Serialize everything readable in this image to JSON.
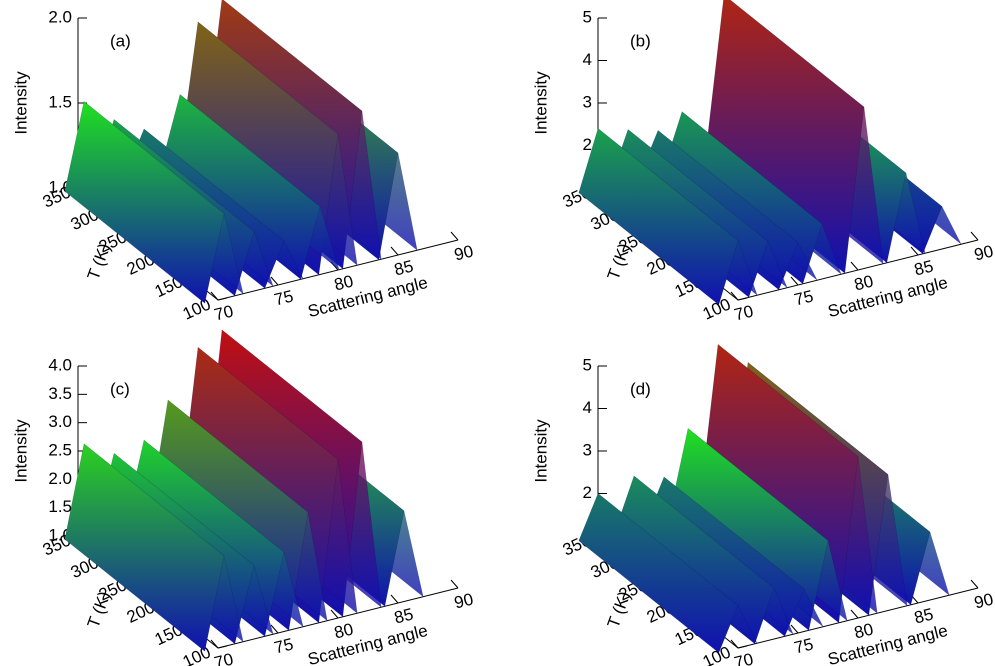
{
  "chart_data": [
    {
      "type": "surface3d",
      "label": "(a)",
      "zlabel": "Intensity",
      "tlabel": "T (K)",
      "xlabel": "Scattering angle",
      "xlim": [
        70,
        90
      ],
      "xticks": [
        70,
        75,
        80,
        85,
        90
      ],
      "tlim": [
        100,
        350
      ],
      "tticks": [
        100,
        150,
        200,
        250,
        300,
        350
      ],
      "zlim": [
        1,
        2
      ],
      "zticks": [
        {
          "value": 1,
          "label": "1.0"
        },
        1.5,
        {
          "value": 2,
          "label": "2.0"
        }
      ],
      "colormap": [
        "#1010b0",
        "#20e020",
        "#c01010"
      ],
      "x": [
        70.5,
        73,
        75.5,
        78.5,
        80,
        82,
        85
      ],
      "values": [
        1.5,
        1.35,
        1.25,
        1.4,
        1.8,
        1.9,
        1.6
      ]
    },
    {
      "type": "surface3d",
      "label": "(b)",
      "zlabel": "Intensity",
      "tlabel": "T (K)",
      "xlabel": "Scattering angle",
      "xlim": [
        70,
        90
      ],
      "xticks": [
        70,
        75,
        80,
        85,
        90
      ],
      "tlim": [
        100,
        350
      ],
      "tticks": [
        100,
        150,
        200,
        250,
        300,
        350
      ],
      "zlim": [
        1,
        5
      ],
      "zticks": [
        1,
        2,
        3,
        4,
        5
      ],
      "colormap": [
        "#1010b0",
        "#20e020",
        "#c01010"
      ],
      "x": [
        70,
        72.5,
        75,
        77,
        80.5,
        84,
        87
      ],
      "values": [
        2.4,
        2.2,
        2.0,
        2.3,
        4.8,
        3.0,
        2.0
      ]
    },
    {
      "type": "surface3d",
      "label": "(c)",
      "zlabel": "Intensity",
      "tlabel": "T (K)",
      "xlabel": "Scattering angle",
      "xlim": [
        70,
        90
      ],
      "xticks": [
        70,
        75,
        80,
        85,
        90
      ],
      "tlim": [
        100,
        350
      ],
      "tticks": [
        100,
        150,
        200,
        250,
        300,
        350
      ],
      "zlim": [
        1,
        4
      ],
      "zticks": [
        {
          "value": 1,
          "label": "1.0"
        },
        1.5,
        {
          "value": 2,
          "label": "2.0"
        },
        2.5,
        {
          "value": 3,
          "label": "3.0"
        },
        3.5,
        {
          "value": 4,
          "label": "4.0"
        }
      ],
      "colormap": [
        "#1010b0",
        "#20e020",
        "#c01010"
      ],
      "x": [
        70.5,
        73,
        75.5,
        77.5,
        80,
        82,
        85.5
      ],
      "values": [
        2.6,
        2.3,
        2.4,
        3.0,
        3.8,
        4.0,
        2.6
      ]
    },
    {
      "type": "surface3d",
      "label": "(d)",
      "zlabel": "Intensity",
      "tlabel": "T (K)",
      "xlabel": "Scattering angle",
      "xlim": [
        70,
        90
      ],
      "xticks": [
        70,
        75,
        80,
        85,
        90
      ],
      "tlim": [
        100,
        350
      ],
      "tticks": [
        100,
        150,
        200,
        250,
        300,
        350
      ],
      "zlim": [
        1,
        5
      ],
      "zticks": [
        1,
        2,
        3,
        4,
        5
      ],
      "colormap": [
        "#1010b0",
        "#20e020",
        "#c01010"
      ],
      "x": [
        70,
        73,
        75.5,
        77.5,
        80,
        82.5,
        86
      ],
      "values": [
        2.0,
        2.2,
        2.0,
        3.0,
        4.8,
        4.2,
        2.6
      ]
    }
  ]
}
